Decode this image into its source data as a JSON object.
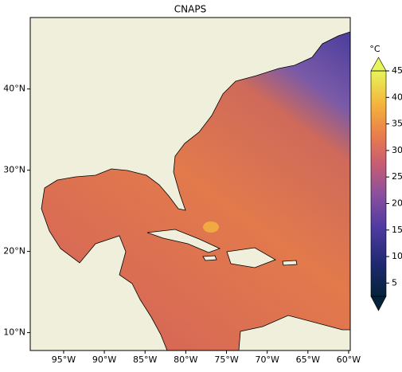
{
  "map": {
    "title": "CNAPS",
    "xlim": [
      -99.1,
      -59.8
    ],
    "ylim": [
      7.8,
      48.8
    ],
    "lon_ticks": [
      {
        "value": -95,
        "label": "95°W"
      },
      {
        "value": -90,
        "label": "90°W"
      },
      {
        "value": -85,
        "label": "85°W"
      },
      {
        "value": -80,
        "label": "80°W"
      },
      {
        "value": -75,
        "label": "75°W"
      },
      {
        "value": -70,
        "label": "70°W"
      },
      {
        "value": -65,
        "label": "65°W"
      },
      {
        "value": -60,
        "label": "60°W"
      }
    ],
    "lat_ticks": [
      {
        "value": 10,
        "label": "10°N"
      },
      {
        "value": 20,
        "label": "20°N"
      },
      {
        "value": 30,
        "label": "30°N"
      },
      {
        "value": 40,
        "label": "40°N"
      }
    ],
    "colorbar": {
      "label": "°C",
      "lim": [
        2.5,
        45
      ],
      "ticks": [
        5,
        10,
        15,
        20,
        25,
        30,
        35,
        40,
        45
      ]
    }
  }
}
